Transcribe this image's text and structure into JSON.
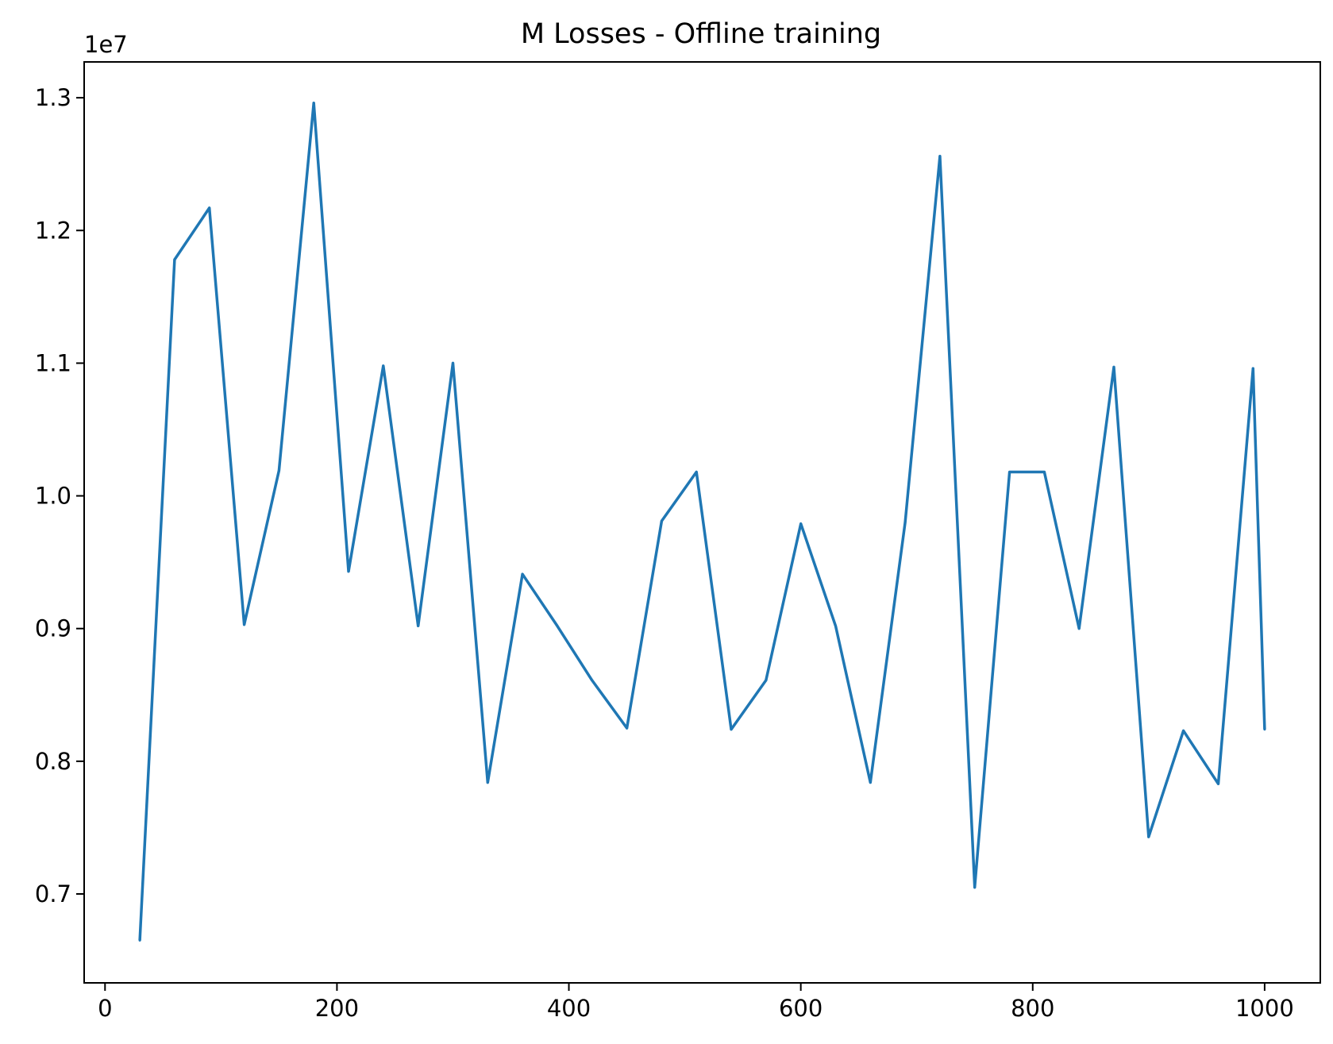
{
  "chart_data": {
    "type": "line",
    "title": "M Losses - Offline training",
    "xlabel": "",
    "ylabel": "",
    "y_offset_label": "1e7",
    "y_scale_factor": 10000000,
    "xlim": [
      -18,
      1048
    ],
    "ylim": [
      6330000,
      13270000
    ],
    "xticks": [
      0,
      200,
      400,
      600,
      800,
      1000
    ],
    "xtick_labels": [
      "0",
      "200",
      "400",
      "600",
      "800",
      "1000"
    ],
    "yticks": [
      7000000,
      8000000,
      9000000,
      10000000,
      11000000,
      12000000,
      13000000
    ],
    "ytick_labels": [
      "0.7",
      "0.8",
      "0.9",
      "1.0",
      "1.1",
      "1.2",
      "1.3"
    ],
    "grid": false,
    "legend": false,
    "series": [
      {
        "color": "#1f77b4",
        "x": [
          30,
          60,
          90,
          120,
          150,
          180,
          210,
          240,
          270,
          300,
          330,
          360,
          390,
          420,
          450,
          480,
          510,
          540,
          570,
          600,
          630,
          660,
          690,
          720,
          750,
          780,
          810,
          840,
          870,
          900,
          930,
          960,
          990,
          1000
        ],
        "y": [
          6650000,
          11780000,
          12170000,
          9030000,
          10190000,
          12960000,
          9430000,
          10980000,
          9020000,
          11000000,
          7840000,
          9410000,
          9020000,
          8610000,
          8250000,
          9810000,
          10180000,
          8240000,
          8610000,
          9790000,
          9020000,
          7840000,
          9800000,
          12560000,
          7050000,
          10180000,
          10180000,
          9000000,
          10970000,
          7430000,
          8230000,
          7830000,
          10960000,
          8240000
        ]
      }
    ]
  }
}
